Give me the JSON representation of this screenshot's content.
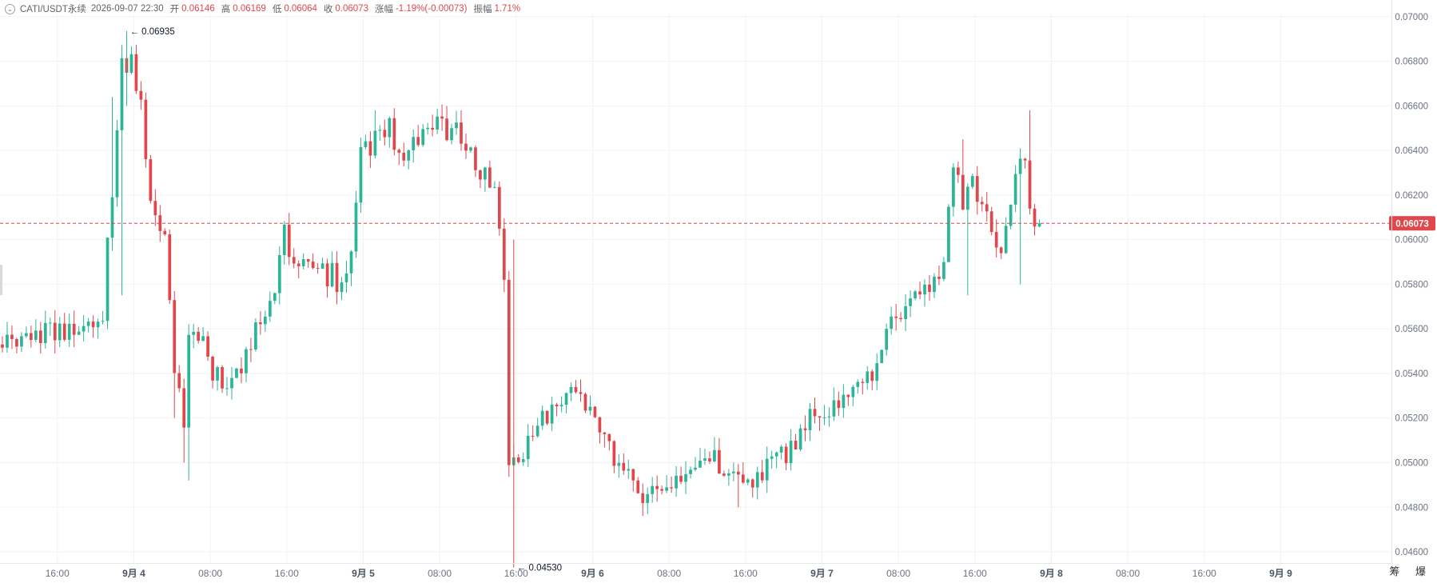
{
  "header": {
    "collapse_icon": "chevron-circle-icon",
    "symbol": "CATI/USDT永续",
    "datetime": "2026-09-07 22:30",
    "open_label": "开",
    "open_value": "0.06146",
    "high_label": "高",
    "high_value": "0.06169",
    "low_label": "低",
    "low_value": "0.06064",
    "close_label": "收",
    "close_value": "0.06073",
    "change_label": "涨幅",
    "change_value": "-1.19%(-0.00073)",
    "amplitude_label": "振幅",
    "amplitude_value": "1.71%"
  },
  "corner": {
    "labels": "筹 爆"
  },
  "colors": {
    "up": "#2bb597",
    "down": "#e0474c",
    "grid": "#f1f2f4",
    "axis_text": "#6b7280"
  },
  "chart_data": {
    "type": "candlestick",
    "interval_minutes": 30,
    "y_axis": {
      "min": 0.0455,
      "max": 0.0701,
      "side": "right",
      "ticks": [
        "0.07000",
        "0.06800",
        "0.06600",
        "0.06400",
        "0.06200",
        "0.06000",
        "0.05800",
        "0.05600",
        "0.05400",
        "0.05200",
        "0.05000",
        "0.04800",
        "0.04600"
      ]
    },
    "x_axis": {
      "start": "2026-09-03 10:00",
      "end": "2026-09-09 11:30",
      "ticks": [
        {
          "time": "2026-09-03 16:00",
          "label": "16:00",
          "bold": false
        },
        {
          "time": "2026-09-04 00:00",
          "label": "9月 4",
          "bold": true
        },
        {
          "time": "2026-09-04 08:00",
          "label": "08:00",
          "bold": false
        },
        {
          "time": "2026-09-04 16:00",
          "label": "16:00",
          "bold": false
        },
        {
          "time": "2026-09-05 00:00",
          "label": "9月 5",
          "bold": true
        },
        {
          "time": "2026-09-05 08:00",
          "label": "08:00",
          "bold": false
        },
        {
          "time": "2026-09-05 16:00",
          "label": "16:00",
          "bold": false
        },
        {
          "time": "2026-09-06 00:00",
          "label": "9月 6",
          "bold": true
        },
        {
          "time": "2026-09-06 08:00",
          "label": "08:00",
          "bold": false
        },
        {
          "time": "2026-09-06 16:00",
          "label": "16:00",
          "bold": false
        },
        {
          "time": "2026-09-07 00:00",
          "label": "9月 7",
          "bold": true
        },
        {
          "time": "2026-09-07 08:00",
          "label": "08:00",
          "bold": false
        },
        {
          "time": "2026-09-07 16:00",
          "label": "16:00",
          "bold": false
        },
        {
          "time": "2026-09-08 00:00",
          "label": "9月 8",
          "bold": true
        },
        {
          "time": "2026-09-08 08:00",
          "label": "08:00",
          "bold": false
        },
        {
          "time": "2026-09-08 16:00",
          "label": "16:00",
          "bold": false
        },
        {
          "time": "2026-09-09 00:00",
          "label": "9月 9",
          "bold": true
        }
      ]
    },
    "current_price": {
      "value": 0.06073,
      "label": "0.06073"
    },
    "annotations": [
      {
        "time": "2026-09-03 23:00",
        "value": 0.06935,
        "label": "← 0.06935"
      },
      {
        "time": "2026-09-05 15:30",
        "value": 0.0453,
        "label": "← 0.04530"
      }
    ],
    "path": [
      [
        "2026-09-03 10:00",
        0.0553
      ],
      [
        "2026-09-03 12:00",
        0.0552
      ],
      [
        "2026-09-03 14:00",
        0.0556
      ],
      [
        "2026-09-03 15:00",
        0.056
      ],
      [
        "2026-09-03 17:00",
        0.0558
      ],
      [
        "2026-09-03 19:00",
        0.0557
      ],
      [
        "2026-09-03 21:00",
        0.0563
      ],
      [
        "2026-09-03 21:30",
        0.06
      ],
      [
        "2026-09-03 22:30",
        0.065
      ],
      [
        "2026-09-03 23:00",
        0.0685
      ],
      [
        "2026-09-04 00:00",
        0.0678
      ],
      [
        "2026-09-04 01:00",
        0.066
      ],
      [
        "2026-09-04 02:00",
        0.0615
      ],
      [
        "2026-09-04 03:30",
        0.06
      ],
      [
        "2026-09-04 04:30",
        0.0545
      ],
      [
        "2026-09-04 05:30",
        0.0512
      ],
      [
        "2026-09-04 06:00",
        0.0555
      ],
      [
        "2026-09-04 07:00",
        0.0558
      ],
      [
        "2026-09-04 08:00",
        0.0545
      ],
      [
        "2026-09-04 10:00",
        0.0532
      ],
      [
        "2026-09-04 11:00",
        0.054
      ],
      [
        "2026-09-04 13:00",
        0.056
      ],
      [
        "2026-09-04 15:00",
        0.058
      ],
      [
        "2026-09-04 16:00",
        0.0605
      ],
      [
        "2026-09-04 17:00",
        0.059
      ],
      [
        "2026-09-04 19:00",
        0.0583
      ],
      [
        "2026-09-04 21:00",
        0.0584
      ],
      [
        "2026-09-04 22:00",
        0.0578
      ],
      [
        "2026-09-04 23:00",
        0.059
      ],
      [
        "2026-09-05 00:00",
        0.0636
      ],
      [
        "2026-09-05 02:00",
        0.0645
      ],
      [
        "2026-09-05 03:00",
        0.065
      ],
      [
        "2026-09-05 04:00",
        0.064
      ],
      [
        "2026-09-05 06:00",
        0.0645
      ],
      [
        "2026-09-05 08:00",
        0.065
      ],
      [
        "2026-09-05 10:00",
        0.065
      ],
      [
        "2026-09-05 11:00",
        0.064
      ],
      [
        "2026-09-05 12:30",
        0.063
      ],
      [
        "2026-09-05 14:00",
        0.0628
      ],
      [
        "2026-09-05 14:30",
        0.06
      ],
      [
        "2026-09-05 15:00",
        0.0588
      ],
      [
        "2026-09-05 15:30",
        0.05
      ],
      [
        "2026-09-05 17:00",
        0.0506
      ],
      [
        "2026-09-05 19:00",
        0.052
      ],
      [
        "2026-09-05 21:00",
        0.053
      ],
      [
        "2026-09-05 23:00",
        0.0535
      ],
      [
        "2026-09-06 00:00",
        0.0522
      ],
      [
        "2026-09-06 02:00",
        0.0505
      ],
      [
        "2026-09-06 04:00",
        0.0495
      ],
      [
        "2026-09-06 06:00",
        0.0483
      ],
      [
        "2026-09-06 08:00",
        0.0492
      ],
      [
        "2026-09-06 10:00",
        0.0496
      ],
      [
        "2026-09-06 11:00",
        0.05
      ],
      [
        "2026-09-06 13:00",
        0.0505
      ],
      [
        "2026-09-06 14:00",
        0.0492
      ],
      [
        "2026-09-06 15:00",
        0.0495
      ],
      [
        "2026-09-06 17:00",
        0.0488
      ],
      [
        "2026-09-06 19:00",
        0.05
      ],
      [
        "2026-09-06 21:00",
        0.0505
      ],
      [
        "2026-09-06 23:00",
        0.052
      ],
      [
        "2026-09-07 01:00",
        0.0525
      ],
      [
        "2026-09-07 03:00",
        0.053
      ],
      [
        "2026-09-07 05:00",
        0.0538
      ],
      [
        "2026-09-07 06:00",
        0.0545
      ],
      [
        "2026-09-07 07:00",
        0.0562
      ],
      [
        "2026-09-07 08:00",
        0.0565
      ],
      [
        "2026-09-07 09:00",
        0.057
      ],
      [
        "2026-09-07 11:00",
        0.0578
      ],
      [
        "2026-09-07 12:00",
        0.0578
      ],
      [
        "2026-09-07 13:00",
        0.059
      ],
      [
        "2026-09-07 13:30",
        0.062
      ],
      [
        "2026-09-07 14:00",
        0.0632
      ],
      [
        "2026-09-07 15:00",
        0.0615
      ],
      [
        "2026-09-07 16:00",
        0.063
      ],
      [
        "2026-09-07 17:00",
        0.0615
      ],
      [
        "2026-09-07 18:00",
        0.06
      ],
      [
        "2026-09-07 19:00",
        0.0595
      ],
      [
        "2026-09-07 20:00",
        0.062
      ],
      [
        "2026-09-07 21:00",
        0.0638
      ],
      [
        "2026-09-07 21:30",
        0.063
      ],
      [
        "2026-09-07 22:00",
        0.0615
      ],
      [
        "2026-09-07 22:30",
        0.06073
      ]
    ],
    "spikes": [
      [
        "2026-09-03 21:30",
        0.0664,
        null
      ],
      [
        "2026-09-03 22:30",
        null,
        0.0575
      ],
      [
        "2026-09-04 04:00",
        null,
        0.052
      ],
      [
        "2026-09-04 05:00",
        null,
        0.05
      ],
      [
        "2026-09-04 05:30",
        null,
        0.0492
      ],
      [
        "2026-09-04 16:00",
        0.0612,
        null
      ],
      [
        "2026-09-05 01:00",
        0.0658,
        null
      ],
      [
        "2026-09-05 10:00",
        0.0657,
        null
      ],
      [
        "2026-09-05 17:00",
        null,
        0.053
      ],
      [
        "2026-09-06 04:00",
        null,
        0.0487
      ],
      [
        "2026-09-06 15:00",
        null,
        0.048
      ],
      [
        "2026-09-07 14:30",
        0.0645,
        null
      ],
      [
        "2026-09-07 15:00",
        null,
        0.0575
      ],
      [
        "2026-09-07 20:30",
        null,
        0.058
      ],
      [
        "2026-09-07 21:30",
        0.0658,
        null
      ]
    ]
  }
}
